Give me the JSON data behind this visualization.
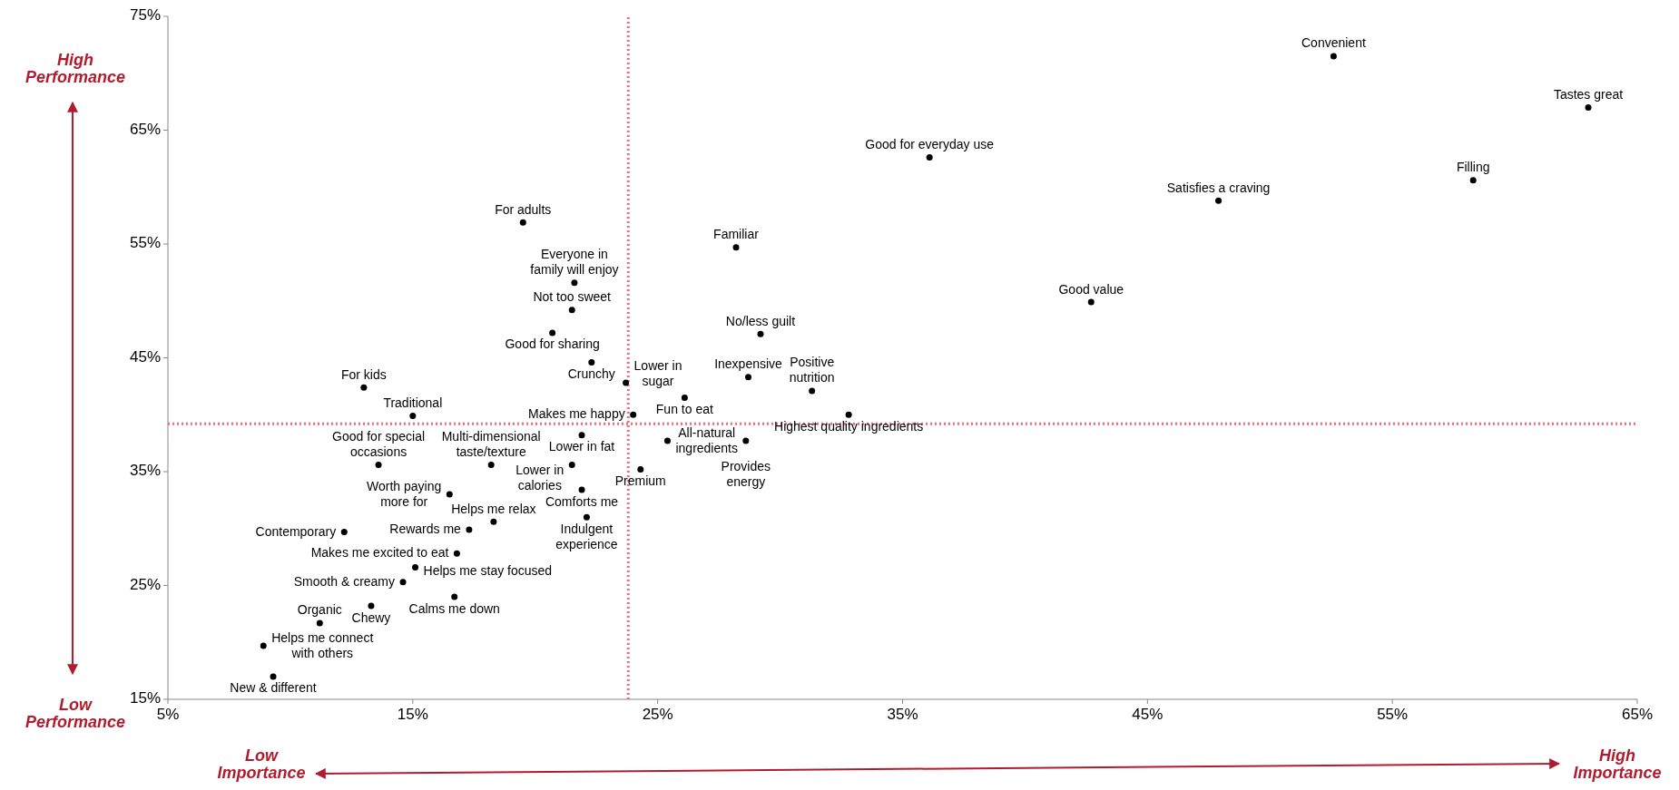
{
  "chart_data": {
    "type": "scatter",
    "xlim": [
      5,
      65
    ],
    "ylim": [
      15,
      75
    ],
    "xticks": [
      {
        "value": 5,
        "label": "5%"
      },
      {
        "value": 15,
        "label": "15%"
      },
      {
        "value": 25,
        "label": "25%"
      },
      {
        "value": 35,
        "label": "35%"
      },
      {
        "value": 45,
        "label": "45%"
      },
      {
        "value": 55,
        "label": "55%"
      },
      {
        "value": 65,
        "label": "65%"
      }
    ],
    "yticks": [
      {
        "value": 15,
        "label": "15%"
      },
      {
        "value": 25,
        "label": "25%"
      },
      {
        "value": 35,
        "label": "35%"
      },
      {
        "value": 45,
        "label": "45%"
      },
      {
        "value": 55,
        "label": "55%"
      },
      {
        "value": 65,
        "label": "65%"
      },
      {
        "value": 75,
        "label": "75%"
      }
    ],
    "grid": false,
    "marker": "circle",
    "ref_lines": [
      {
        "axis": "x",
        "value": 23.8,
        "color": "#e8707e",
        "line_style": "dotted"
      },
      {
        "axis": "y",
        "value": 39.2,
        "color": "#e8707e",
        "line_style": "dotted"
      }
    ],
    "annotations": [
      "High\nPerformance",
      "Low\nPerformance",
      "Low\nImportance",
      "High\nImportance"
    ],
    "series": [
      {
        "color": "#000000",
        "x": [
          52.6,
          63.0,
          36.1,
          58.3,
          47.9,
          19.5,
          28.2,
          21.6,
          42.7,
          21.5,
          20.7,
          29.2,
          22.3,
          23.7,
          28.7,
          31.3,
          13.0,
          26.1,
          15.0,
          24.0,
          32.8,
          21.9,
          25.4,
          28.6,
          13.6,
          18.2,
          21.5,
          24.3,
          16.5,
          21.9,
          22.1,
          18.3,
          17.3,
          12.2,
          16.8,
          15.1,
          14.6,
          16.7,
          13.3,
          11.2,
          8.9,
          9.3
        ],
        "values": [
          71.5,
          67.0,
          62.6,
          60.6,
          58.8,
          56.9,
          54.7,
          51.6,
          49.9,
          49.2,
          47.2,
          47.1,
          44.6,
          42.8,
          43.3,
          42.1,
          42.4,
          41.5,
          39.9,
          40.0,
          40.0,
          38.2,
          37.7,
          37.7,
          35.6,
          35.6,
          35.6,
          35.2,
          33.0,
          33.4,
          31.0,
          30.6,
          29.9,
          29.7,
          27.8,
          26.6,
          25.3,
          24.0,
          23.2,
          21.7,
          19.7,
          17.0
        ],
        "value_labels": [
          "Convenient",
          "Tastes great",
          "Good for everyday use",
          "Filling",
          "Satisfies a craving",
          "For adults",
          "Familiar",
          "Everyone in\nfamily will enjoy",
          "Good value",
          "Not too sweet",
          "Good for sharing",
          "No/less guilt",
          "Crunchy",
          "Lower in\nsugar",
          "Inexpensive",
          "Positive\nnutrition",
          "For kids",
          "Fun to eat",
          "Traditional",
          "Makes me happy",
          "Highest quality ingredients",
          "Lower in fat",
          "All-natural\ningredients",
          "Provides\nenergy",
          "Good for special\noccasions",
          "Multi-dimensional\ntaste/texture",
          "Lower in\ncalories",
          "Premium",
          "Worth paying\nmore for",
          "Comforts me",
          "Indulgent\nexperience",
          "Helps me relax",
          "Rewards me",
          "Contemporary",
          "Makes me excited to eat",
          "Helps me stay focused",
          "Smooth & creamy",
          "Calms me down",
          "Chewy",
          "Organic",
          "Helps me connect\nwith others",
          "New & different"
        ]
      }
    ]
  }
}
